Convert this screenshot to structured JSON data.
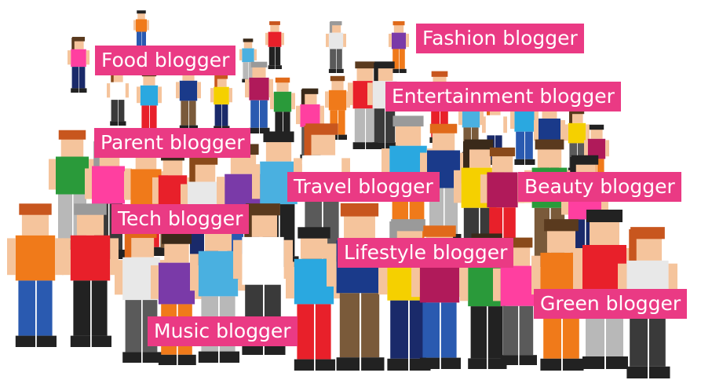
{
  "labels": {
    "food": "Food blogger",
    "fashion": "Fashion blogger",
    "entertainment": "Entertainment blogger",
    "parent": "Parent blogger",
    "travel": "Travel blogger",
    "beauty": "Beauty blogger",
    "tech": "Tech blogger",
    "lifestyle": "Lifestyle blogger",
    "green": "Green blogger",
    "music": "Music blogger"
  },
  "colors": {
    "tag_background": "#ea3a84",
    "tag_text": "#ffffff"
  }
}
